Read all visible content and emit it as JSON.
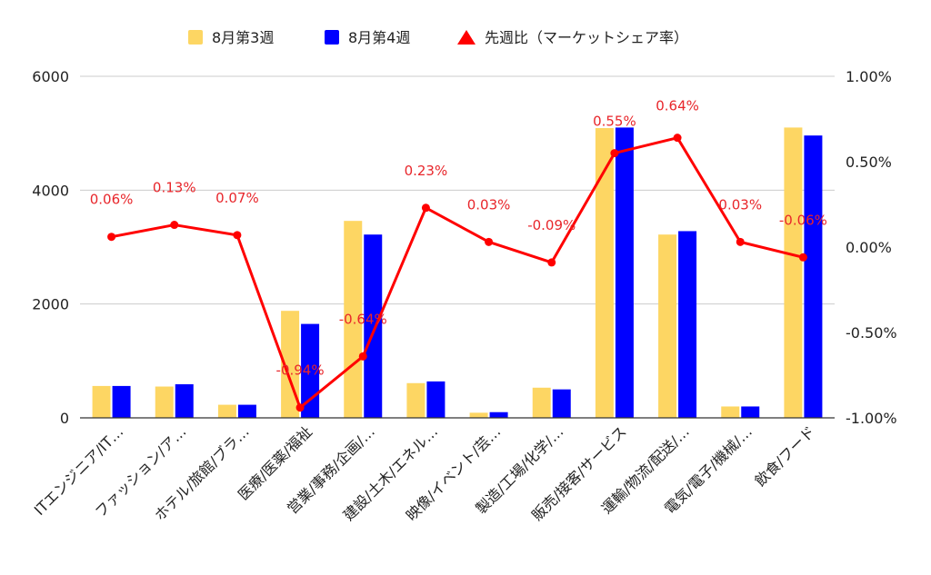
{
  "chart_data": {
    "type": "bar",
    "categories": [
      "ITエンジニア/IT…",
      "ファッション/ア…",
      "ホテル/旅館/ブラ…",
      "医療/医薬/福祉",
      "営業/事務/企画/…",
      "建設/土木/エネル…",
      "映像/イベント/芸…",
      "製造/工場/化学/…",
      "販売/接客/サービス",
      "運輸/物流/配送/…",
      "電気/電子/機械/…",
      "飲食/フード"
    ],
    "series": [
      {
        "name": "8月第3週",
        "color": "#fdd663",
        "axis": "left",
        "values": [
          560,
          550,
          230,
          1880,
          3460,
          610,
          90,
          530,
          5090,
          3220,
          200,
          5100
        ]
      },
      {
        "name": "8月第4週",
        "color": "#0000ff",
        "axis": "left",
        "values": [
          560,
          590,
          230,
          1650,
          3220,
          640,
          100,
          500,
          5100,
          3280,
          200,
          4960
        ]
      }
    ],
    "line_series": {
      "name": "先週比（マーケットシェア率）",
      "color": "#ff0000",
      "axis": "right",
      "values": [
        0.06,
        0.13,
        0.07,
        -0.94,
        -0.64,
        0.23,
        0.03,
        -0.09,
        0.55,
        0.64,
        0.03,
        -0.06
      ],
      "labels": [
        "0.06%",
        "0.13%",
        "0.07%",
        "-0.94%",
        "-0.64%",
        "0.23%",
        "0.03%",
        "-0.09%",
        "0.55%",
        "0.64%",
        "0.03%",
        "-0.06%"
      ]
    },
    "left_axis": {
      "ylim": [
        0,
        6000
      ],
      "ticks": [
        "0",
        "2000",
        "4000",
        "6000"
      ],
      "tick_values": [
        0,
        2000,
        4000,
        6000
      ]
    },
    "right_axis": {
      "ylim": [
        -1.0,
        1.0
      ],
      "ticks": [
        "-1.00%",
        "-0.50%",
        "0.00%",
        "0.50%",
        "1.00%"
      ],
      "tick_values": [
        -1.0,
        -0.5,
        0.0,
        0.5,
        1.0
      ]
    },
    "grid": true,
    "legend_position": "top-center",
    "title": "",
    "xlabel": "",
    "ylabel": ""
  }
}
